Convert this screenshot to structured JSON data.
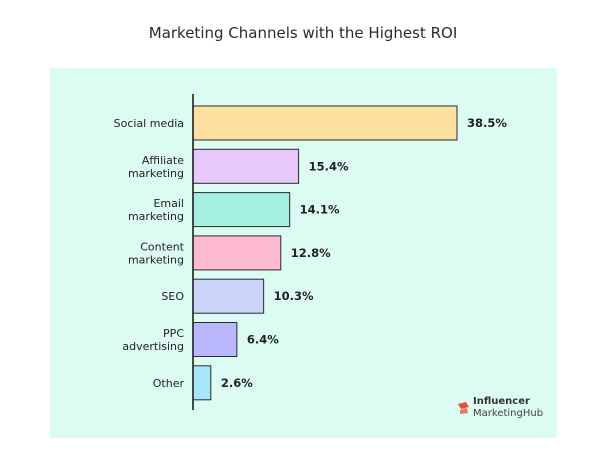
{
  "chart_data": {
    "type": "bar",
    "orientation": "horizontal",
    "title": "Marketing Channels with the Highest ROI",
    "categories": [
      [
        "Social media"
      ],
      [
        "Affiliate",
        "marketing"
      ],
      [
        "Email",
        "marketing"
      ],
      [
        "Content",
        "marketing"
      ],
      [
        "SEO"
      ],
      [
        "PPC",
        "advertising"
      ],
      [
        "Other"
      ]
    ],
    "values": [
      38.5,
      15.4,
      14.1,
      12.8,
      10.3,
      6.4,
      2.6
    ],
    "value_labels": [
      "38.5%",
      "15.4%",
      "14.1%",
      "12.8%",
      "10.3%",
      "6.4%",
      "2.6%"
    ],
    "colors": [
      "#fde0a0",
      "#e6c8fb",
      "#a3efe0",
      "#fdbad0",
      "#cbd5fb",
      "#b9b6fb",
      "#a6e6fa"
    ],
    "xlim": [
      0,
      38.5
    ],
    "grid": false
  },
  "logo": {
    "line1": "Influencer",
    "line2": "MarketingHub",
    "accent": "#f04a3a"
  }
}
